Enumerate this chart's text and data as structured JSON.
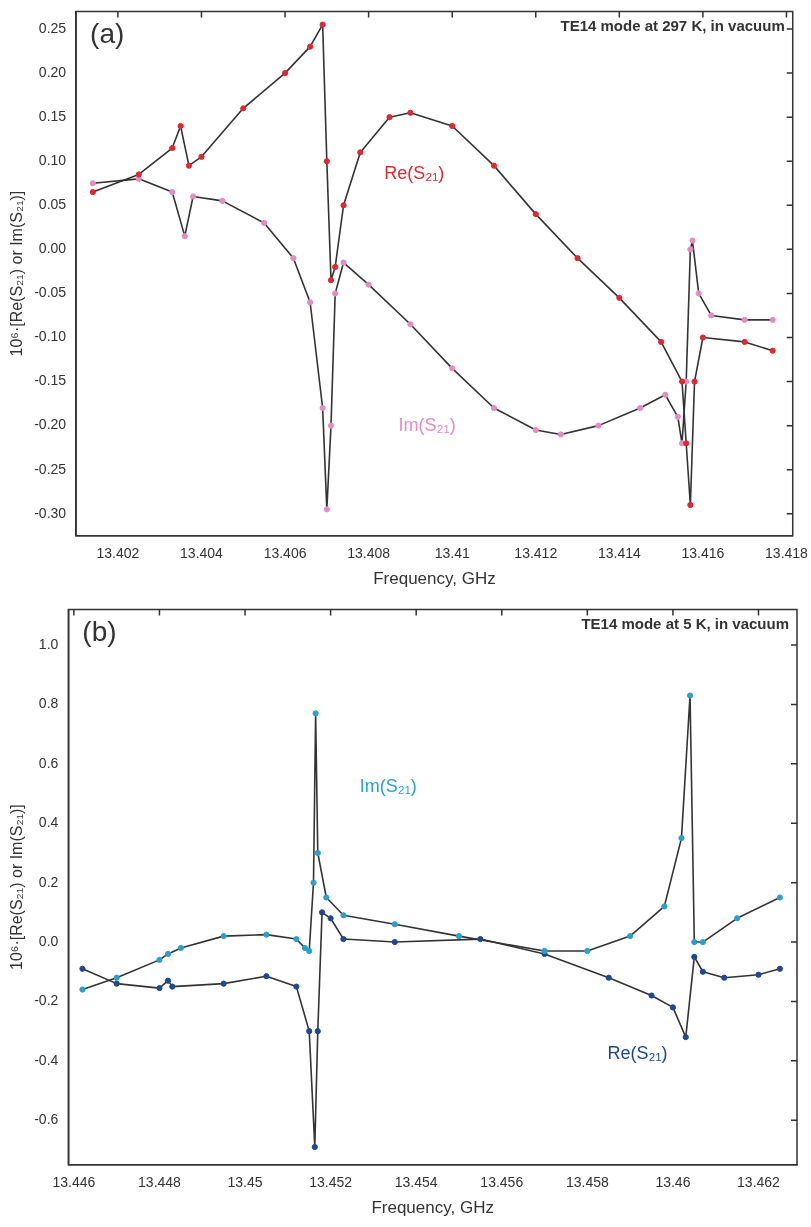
{
  "chart_data": [
    {
      "type": "scatter",
      "title": "TE14 mode at 297 K, in vacuum",
      "xlabel": "Frequency, GHz",
      "ylabel": "10⁶·[Re(S₂₁) or Im(S₂₁)]",
      "annotations": [
        "(a)"
      ],
      "xlim": [
        13.401,
        13.41815
      ],
      "ylim": [
        -0.325,
        0.27
      ],
      "xticks": [
        13.402,
        13.404,
        13.406,
        13.408,
        13.41,
        13.412,
        13.414,
        13.416,
        13.418
      ],
      "yticks": [
        {
          "value": -0.3,
          "label": "-0.30"
        },
        -0.25,
        {
          "value": -0.2,
          "label": "-0.20"
        },
        -0.15,
        {
          "value": -0.1,
          "label": "-0.10"
        },
        -0.05,
        {
          "value": 0,
          "label": "0.00"
        },
        0.05,
        {
          "value": 0.1,
          "label": "0.10"
        },
        0.15,
        {
          "value": 0.2,
          "label": "0.20"
        },
        0.25
      ],
      "grid": false,
      "legend": false,
      "series": [
        {
          "type": "line",
          "marker": "none",
          "color": "#333333",
          "x": [
            13.4014,
            13.4025,
            13.4033,
            13.4035,
            13.4037,
            13.404,
            13.405,
            13.406,
            13.4066,
            13.4069,
            13.407,
            13.4071,
            13.4072,
            13.4074,
            13.4078,
            13.4085,
            13.409,
            13.41,
            13.411,
            13.412,
            13.413,
            13.414,
            13.415,
            13.4155,
            13.4156,
            13.4157,
            13.4158,
            13.416,
            13.417,
            13.41767
          ],
          "values": [
            0.065,
            0.085,
            0.115,
            0.14,
            0.095,
            0.105,
            0.16,
            0.2,
            0.23,
            0.255,
            0.1,
            -0.035,
            -0.02,
            0.05,
            0.11,
            0.15,
            0.155,
            0.14,
            0.095,
            0.04,
            -0.01,
            -0.055,
            -0.105,
            -0.15,
            -0.22,
            -0.29,
            -0.15,
            -0.1,
            -0.105,
            -0.115
          ]
        },
        {
          "type": "line",
          "marker": "none",
          "color": "#333333",
          "x": [
            13.4014,
            13.4025,
            13.4033,
            13.4036,
            13.4038,
            13.4045,
            13.4055,
            13.4062,
            13.4066,
            13.4069,
            13.407,
            13.4071,
            13.4072,
            13.4074,
            13.408,
            13.409,
            13.41,
            13.411,
            13.412,
            13.4126,
            13.4135,
            13.4145,
            13.4151,
            13.4154,
            13.4155,
            13.4156,
            13.4157,
            13.41575,
            13.4159,
            13.4162,
            13.417,
            13.41767
          ],
          "values": [
            0.075,
            0.08,
            0.065,
            0.015,
            0.06,
            0.055,
            0.03,
            -0.01,
            -0.06,
            -0.18,
            -0.295,
            -0.2,
            -0.05,
            -0.015,
            -0.04,
            -0.085,
            -0.135,
            -0.18,
            -0.205,
            -0.21,
            -0.2,
            -0.18,
            -0.165,
            -0.19,
            -0.22,
            -0.15,
            0,
            0.01,
            -0.05,
            -0.075,
            -0.08,
            -0.08
          ]
        },
        {
          "marker": "circle",
          "name": "Re(S₂₁)",
          "color": "#e0282e",
          "x": [
            13.4014,
            13.4025,
            13.4033,
            13.4035,
            13.4037,
            13.404,
            13.405,
            13.406,
            13.4066,
            13.4069,
            13.407,
            13.4071,
            13.4072,
            13.4074,
            13.4078,
            13.4085,
            13.409,
            13.41,
            13.411,
            13.412,
            13.413,
            13.414,
            13.415,
            13.4155,
            13.4156,
            13.4157,
            13.4158,
            13.416,
            13.417,
            13.41767
          ],
          "values": [
            0.065,
            0.085,
            0.115,
            0.14,
            0.095,
            0.105,
            0.16,
            0.2,
            0.23,
            0.255,
            0.1,
            -0.035,
            -0.02,
            0.05,
            0.11,
            0.15,
            0.155,
            0.14,
            0.095,
            0.04,
            -0.01,
            -0.055,
            -0.105,
            -0.15,
            -0.22,
            -0.29,
            -0.15,
            -0.1,
            -0.105,
            -0.115
          ]
        },
        {
          "marker": "circle",
          "name": "Im(S₂₁)",
          "color": "#e58cc0",
          "x": [
            13.4014,
            13.4025,
            13.4033,
            13.4036,
            13.4038,
            13.4045,
            13.4055,
            13.4062,
            13.4066,
            13.4069,
            13.407,
            13.4071,
            13.4072,
            13.4074,
            13.408,
            13.409,
            13.41,
            13.411,
            13.412,
            13.4126,
            13.4135,
            13.4145,
            13.4151,
            13.4154,
            13.4155,
            13.4156,
            13.4157,
            13.41575,
            13.4159,
            13.4162,
            13.417,
            13.41767
          ],
          "values": [
            0.075,
            0.08,
            0.065,
            0.015,
            0.06,
            0.055,
            0.03,
            -0.01,
            -0.06,
            -0.18,
            -0.295,
            -0.2,
            -0.05,
            -0.015,
            -0.04,
            -0.085,
            -0.135,
            -0.18,
            -0.205,
            -0.21,
            -0.2,
            -0.18,
            -0.165,
            -0.19,
            -0.22,
            -0.15,
            0,
            0.01,
            -0.05,
            -0.075,
            -0.08,
            -0.08
          ]
        }
      ]
    },
    {
      "type": "scatter",
      "title": "TE14 mode at 5 K, in vacuum",
      "xlabel": "Frequency, GHz",
      "ylabel": "10⁶·[Re(S₂₁) or Im(S₂₁)]",
      "annotations": [
        "(b)"
      ],
      "xlim": [
        13.44587,
        13.4629
      ],
      "ylim": [
        -0.75,
        1.12
      ],
      "xticks": [
        13.446,
        13.448,
        13.45,
        13.452,
        13.454,
        13.456,
        13.458,
        13.46,
        13.462
      ],
      "yticks": [
        -0.6,
        -0.4,
        -0.2,
        {
          "value": 0,
          "label": "0.0"
        },
        0.2,
        0.4,
        0.6,
        0.8,
        {
          "value": 1,
          "label": "1.0"
        }
      ],
      "grid": false,
      "legend": false,
      "series": [
        {
          "type": "line",
          "marker": "none",
          "color": "#333333",
          "x": [
            13.4462,
            13.447,
            13.448,
            13.4482,
            13.4485,
            13.4495,
            13.4505,
            13.4512,
            13.4514,
            13.4515,
            13.4516,
            13.45165,
            13.4517,
            13.4519,
            13.4523,
            13.4535,
            13.455,
            13.457,
            13.458,
            13.459,
            13.4598,
            13.4602,
            13.4604,
            13.4605,
            13.4607,
            13.4615,
            13.4625
          ],
          "values": [
            -0.16,
            -0.12,
            -0.06,
            -0.04,
            -0.02,
            0.02,
            0.025,
            0.01,
            -0.02,
            -0.03,
            0.2,
            0.77,
            0.3,
            0.15,
            0.09,
            0.06,
            0.02,
            -0.03,
            -0.03,
            0.02,
            0.12,
            0.35,
            0.83,
            0,
            0,
            0.08,
            0.15
          ]
        },
        {
          "type": "line",
          "marker": "none",
          "color": "#333333",
          "x": [
            13.4462,
            13.447,
            13.448,
            13.4482,
            13.4483,
            13.4495,
            13.4505,
            13.4512,
            13.4515,
            13.45163,
            13.4517,
            13.4518,
            13.452,
            13.4523,
            13.4535,
            13.4555,
            13.457,
            13.4585,
            13.4595,
            13.46,
            13.4603,
            13.4605,
            13.4607,
            13.4612,
            13.462,
            13.4625
          ],
          "values": [
            -0.09,
            -0.14,
            -0.155,
            -0.13,
            -0.15,
            -0.14,
            -0.115,
            -0.15,
            -0.3,
            -0.69,
            -0.3,
            0.1,
            0.08,
            0.01,
            0,
            0.01,
            -0.04,
            -0.12,
            -0.18,
            -0.22,
            -0.32,
            -0.05,
            -0.1,
            -0.12,
            -0.11,
            -0.09
          ]
        },
        {
          "marker": "circle",
          "name": "Im(S₂₁)",
          "color": "#2a9fd0",
          "x": [
            13.4462,
            13.447,
            13.448,
            13.4482,
            13.4485,
            13.4495,
            13.4505,
            13.4512,
            13.4514,
            13.4515,
            13.4516,
            13.45165,
            13.4517,
            13.4519,
            13.4523,
            13.4535,
            13.455,
            13.457,
            13.458,
            13.459,
            13.4598,
            13.4602,
            13.4604,
            13.4605,
            13.4607,
            13.4615,
            13.4625
          ],
          "values": [
            -0.16,
            -0.12,
            -0.06,
            -0.04,
            -0.02,
            0.02,
            0.025,
            0.01,
            -0.02,
            -0.03,
            0.2,
            0.77,
            0.3,
            0.15,
            0.09,
            0.06,
            0.02,
            -0.03,
            -0.03,
            0.02,
            0.12,
            0.35,
            0.83,
            0,
            0,
            0.08,
            0.15
          ]
        },
        {
          "marker": "circle",
          "name": "Re(S₂₁)",
          "color": "#1c4a92",
          "x": [
            13.4462,
            13.447,
            13.448,
            13.4482,
            13.4483,
            13.4495,
            13.4505,
            13.4512,
            13.4515,
            13.45163,
            13.4517,
            13.4518,
            13.452,
            13.4523,
            13.4535,
            13.4555,
            13.457,
            13.4585,
            13.4595,
            13.46,
            13.4603,
            13.4605,
            13.4607,
            13.4612,
            13.462,
            13.4625
          ],
          "values": [
            -0.09,
            -0.14,
            -0.155,
            -0.13,
            -0.15,
            -0.14,
            -0.115,
            -0.15,
            -0.3,
            -0.69,
            -0.3,
            0.1,
            0.08,
            0.01,
            0,
            0.01,
            -0.04,
            -0.12,
            -0.18,
            -0.22,
            -0.32,
            -0.05,
            -0.1,
            -0.12,
            -0.11,
            -0.09
          ]
        }
      ]
    }
  ]
}
